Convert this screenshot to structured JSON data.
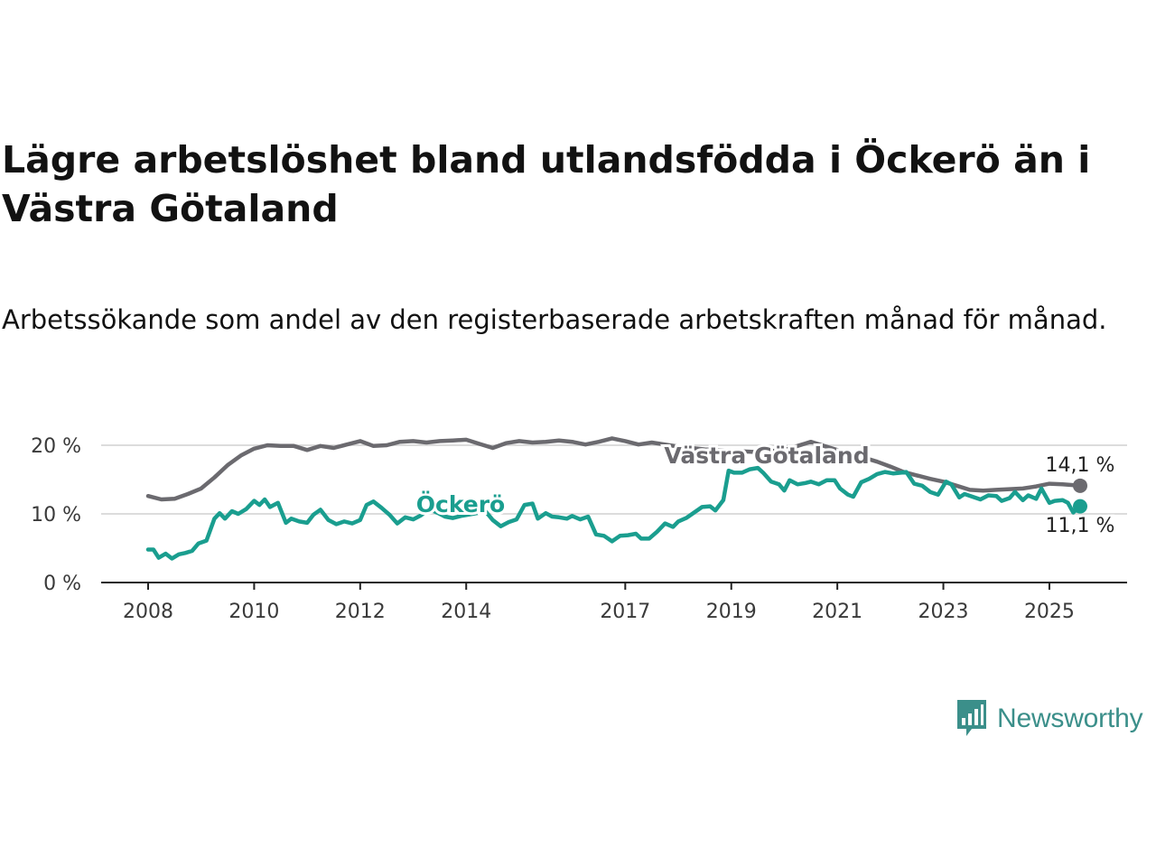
{
  "title": "Lägre arbetslöshet bland utlandsfödda i Öckerö än i Västra Götaland",
  "subtitle": "Arbetssökande som andel av den registerbaserade arbetskraften månad för månad.",
  "brand": {
    "name": "Newsworthy",
    "icon": "newsworthy-logo-icon",
    "color": "#3b8f8a"
  },
  "chart_data": {
    "type": "line",
    "x_range": [
      2008.0,
      2025.58
    ],
    "ylim": [
      0,
      20
    ],
    "y_ticks": [
      0,
      10,
      20
    ],
    "y_tick_labels": [
      "0 %",
      "10 %",
      "20 %"
    ],
    "x_ticks": [
      2008,
      2010,
      2012,
      2014,
      2017,
      2019,
      2021,
      2023,
      2025
    ],
    "x_tick_labels": [
      "2008",
      "2010",
      "2012",
      "2014",
      "2017",
      "2019",
      "2021",
      "2023",
      "2025"
    ],
    "grid": "horizontal",
    "series": [
      {
        "name": "Västra Götaland",
        "color": "#6b6a6f",
        "last_label": "14,1 %",
        "points": [
          [
            2008.0,
            12.6
          ],
          [
            2008.25,
            12.1
          ],
          [
            2008.5,
            12.2
          ],
          [
            2008.75,
            12.9
          ],
          [
            2009.0,
            13.7
          ],
          [
            2009.25,
            15.3
          ],
          [
            2009.5,
            17.1
          ],
          [
            2009.75,
            18.5
          ],
          [
            2010.0,
            19.5
          ],
          [
            2010.25,
            20.0
          ],
          [
            2010.5,
            19.9
          ],
          [
            2010.75,
            19.9
          ],
          [
            2011.0,
            19.3
          ],
          [
            2011.25,
            19.9
          ],
          [
            2011.5,
            19.6
          ],
          [
            2011.75,
            20.1
          ],
          [
            2012.0,
            20.6
          ],
          [
            2012.25,
            19.9
          ],
          [
            2012.5,
            20.0
          ],
          [
            2012.75,
            20.5
          ],
          [
            2013.0,
            20.6
          ],
          [
            2013.25,
            20.4
          ],
          [
            2013.5,
            20.6
          ],
          [
            2013.75,
            20.7
          ],
          [
            2014.0,
            20.8
          ],
          [
            2014.25,
            20.2
          ],
          [
            2014.5,
            19.6
          ],
          [
            2014.75,
            20.3
          ],
          [
            2015.0,
            20.6
          ],
          [
            2015.25,
            20.4
          ],
          [
            2015.5,
            20.5
          ],
          [
            2015.75,
            20.7
          ],
          [
            2016.0,
            20.5
          ],
          [
            2016.25,
            20.1
          ],
          [
            2016.5,
            20.5
          ],
          [
            2016.75,
            21.0
          ],
          [
            2017.0,
            20.6
          ],
          [
            2017.25,
            20.1
          ],
          [
            2017.5,
            20.4
          ],
          [
            2017.75,
            20.1
          ],
          [
            2018.0,
            19.8
          ],
          [
            2018.5,
            19.4
          ],
          [
            2019.0,
            19.2
          ],
          [
            2019.5,
            19.0
          ],
          [
            2020.0,
            19.3
          ],
          [
            2020.5,
            20.5
          ],
          [
            2021.0,
            19.3
          ],
          [
            2021.5,
            18.2
          ],
          [
            2021.75,
            17.6
          ],
          [
            2022.0,
            16.9
          ],
          [
            2022.25,
            16.1
          ],
          [
            2022.5,
            15.6
          ],
          [
            2022.75,
            15.1
          ],
          [
            2023.0,
            14.7
          ],
          [
            2023.25,
            14.1
          ],
          [
            2023.5,
            13.5
          ],
          [
            2023.75,
            13.4
          ],
          [
            2024.0,
            13.5
          ],
          [
            2024.25,
            13.6
          ],
          [
            2024.5,
            13.7
          ],
          [
            2024.75,
            14.0
          ],
          [
            2025.0,
            14.4
          ],
          [
            2025.25,
            14.3
          ],
          [
            2025.58,
            14.1
          ]
        ]
      },
      {
        "name": "Öckerö",
        "color": "#1a9e8f",
        "last_label": "11,1 %",
        "points": [
          [
            2008.0,
            4.8
          ],
          [
            2008.1,
            4.8
          ],
          [
            2008.2,
            3.6
          ],
          [
            2008.33,
            4.2
          ],
          [
            2008.45,
            3.5
          ],
          [
            2008.58,
            4.1
          ],
          [
            2008.7,
            4.3
          ],
          [
            2008.83,
            4.6
          ],
          [
            2008.95,
            5.7
          ],
          [
            2009.1,
            6.1
          ],
          [
            2009.25,
            9.3
          ],
          [
            2009.35,
            10.1
          ],
          [
            2009.45,
            9.3
          ],
          [
            2009.58,
            10.4
          ],
          [
            2009.7,
            10.0
          ],
          [
            2009.85,
            10.7
          ],
          [
            2010.0,
            11.9
          ],
          [
            2010.1,
            11.3
          ],
          [
            2010.2,
            12.1
          ],
          [
            2010.3,
            11.0
          ],
          [
            2010.45,
            11.6
          ],
          [
            2010.6,
            8.7
          ],
          [
            2010.7,
            9.3
          ],
          [
            2010.85,
            8.9
          ],
          [
            2011.0,
            8.7
          ],
          [
            2011.12,
            9.9
          ],
          [
            2011.25,
            10.6
          ],
          [
            2011.4,
            9.1
          ],
          [
            2011.55,
            8.5
          ],
          [
            2011.7,
            8.9
          ],
          [
            2011.85,
            8.6
          ],
          [
            2012.0,
            9.1
          ],
          [
            2012.12,
            11.3
          ],
          [
            2012.25,
            11.8
          ],
          [
            2012.4,
            10.9
          ],
          [
            2012.55,
            9.9
          ],
          [
            2012.7,
            8.6
          ],
          [
            2012.85,
            9.5
          ],
          [
            2013.0,
            9.2
          ],
          [
            2013.15,
            9.8
          ],
          [
            2013.3,
            10.7
          ],
          [
            2013.45,
            10.2
          ],
          [
            2013.6,
            9.6
          ],
          [
            2013.75,
            9.4
          ],
          [
            2013.9,
            9.7
          ],
          [
            2014.05,
            9.9
          ],
          [
            2014.2,
            10.1
          ],
          [
            2014.35,
            10.5
          ],
          [
            2014.5,
            9.1
          ],
          [
            2014.65,
            8.2
          ],
          [
            2014.8,
            8.8
          ],
          [
            2014.95,
            9.2
          ],
          [
            2015.1,
            11.3
          ],
          [
            2015.25,
            11.5
          ],
          [
            2015.35,
            9.3
          ],
          [
            2015.5,
            10.1
          ],
          [
            2015.62,
            9.6
          ],
          [
            2015.75,
            9.5
          ],
          [
            2015.9,
            9.3
          ],
          [
            2016.0,
            9.7
          ],
          [
            2016.15,
            9.2
          ],
          [
            2016.3,
            9.6
          ],
          [
            2016.45,
            7.0
          ],
          [
            2016.6,
            6.8
          ],
          [
            2016.75,
            6.0
          ],
          [
            2016.9,
            6.8
          ],
          [
            2017.05,
            6.9
          ],
          [
            2017.2,
            7.1
          ],
          [
            2017.3,
            6.4
          ],
          [
            2017.45,
            6.4
          ],
          [
            2017.6,
            7.4
          ],
          [
            2017.75,
            8.6
          ],
          [
            2017.9,
            8.1
          ],
          [
            2018.0,
            8.9
          ],
          [
            2018.15,
            9.4
          ],
          [
            2018.3,
            10.2
          ],
          [
            2018.45,
            11.0
          ],
          [
            2018.6,
            11.1
          ],
          [
            2018.7,
            10.5
          ],
          [
            2018.85,
            12.0
          ],
          [
            2018.95,
            16.3
          ],
          [
            2019.05,
            16.0
          ],
          [
            2019.2,
            16.0
          ],
          [
            2019.35,
            16.5
          ],
          [
            2019.5,
            16.7
          ],
          [
            2019.6,
            16.0
          ],
          [
            2019.75,
            14.7
          ],
          [
            2019.9,
            14.3
          ],
          [
            2020.0,
            13.4
          ],
          [
            2020.1,
            14.9
          ],
          [
            2020.25,
            14.3
          ],
          [
            2020.4,
            14.5
          ],
          [
            2020.5,
            14.7
          ],
          [
            2020.65,
            14.3
          ],
          [
            2020.8,
            14.9
          ],
          [
            2020.95,
            14.9
          ],
          [
            2021.05,
            13.7
          ],
          [
            2021.2,
            12.8
          ],
          [
            2021.3,
            12.5
          ],
          [
            2021.45,
            14.6
          ],
          [
            2021.6,
            15.1
          ],
          [
            2021.75,
            15.8
          ],
          [
            2021.9,
            16.1
          ],
          [
            2022.05,
            15.9
          ],
          [
            2022.2,
            16.0
          ],
          [
            2022.3,
            16.1
          ],
          [
            2022.45,
            14.4
          ],
          [
            2022.6,
            14.1
          ],
          [
            2022.75,
            13.2
          ],
          [
            2022.9,
            12.8
          ],
          [
            2023.05,
            14.7
          ],
          [
            2023.15,
            14.3
          ],
          [
            2023.3,
            12.4
          ],
          [
            2023.4,
            12.9
          ],
          [
            2023.55,
            12.5
          ],
          [
            2023.7,
            12.1
          ],
          [
            2023.85,
            12.7
          ],
          [
            2024.0,
            12.6
          ],
          [
            2024.1,
            11.9
          ],
          [
            2024.25,
            12.3
          ],
          [
            2024.35,
            13.2
          ],
          [
            2024.5,
            12.0
          ],
          [
            2024.6,
            12.7
          ],
          [
            2024.75,
            12.2
          ],
          [
            2024.85,
            13.7
          ],
          [
            2025.0,
            11.6
          ],
          [
            2025.1,
            11.9
          ],
          [
            2025.25,
            12.0
          ],
          [
            2025.35,
            11.6
          ],
          [
            2025.45,
            10.2
          ],
          [
            2025.58,
            11.1
          ]
        ]
      }
    ]
  }
}
